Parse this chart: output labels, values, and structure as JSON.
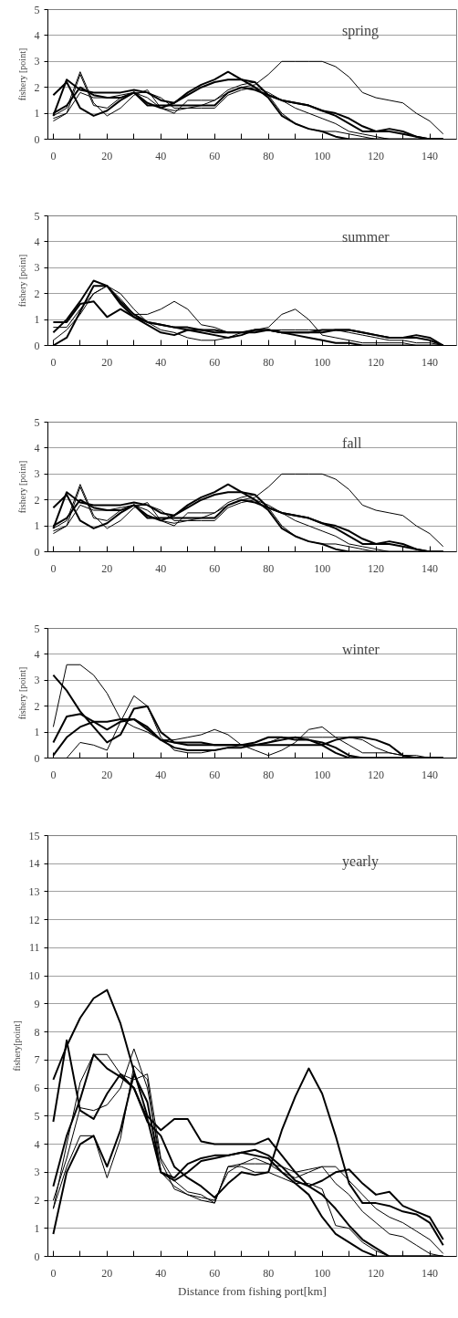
{
  "chart_data": [
    {
      "type": "line",
      "title": "spring",
      "ylabel": "fishery [point]",
      "grid": "y",
      "line_style": "solid",
      "marker": "none",
      "xlim": [
        -2,
        150
      ],
      "ylim": [
        0,
        5
      ],
      "yticks": [
        0,
        1,
        2,
        3,
        4,
        5
      ],
      "xticks": [
        0,
        {
          "value": 10,
          "label": null
        },
        20,
        {
          "value": 30,
          "label": null
        },
        40,
        {
          "value": 50,
          "label": null
        },
        60,
        {
          "value": 70,
          "label": null
        },
        80,
        {
          "value": 90,
          "label": null
        },
        100,
        {
          "value": 110,
          "label": null
        },
        120,
        {
          "value": 130,
          "label": null
        },
        140
      ],
      "x": [
        0,
        5,
        10,
        15,
        20,
        25,
        30,
        35,
        40,
        45,
        50,
        55,
        60,
        65,
        70,
        75,
        80,
        85,
        90,
        95,
        100,
        105,
        110,
        115,
        120,
        125,
        130,
        135,
        140,
        145
      ],
      "series": [
        {
          "color": "#000000",
          "values": [
            1.7,
            2.2,
            1.2,
            0.9,
            1.1,
            1.5,
            1.8,
            1.4,
            1.2,
            1.4,
            1.8,
            2.1,
            2.3,
            2.6,
            2.3,
            2.0,
            1.6,
            0.9,
            0.6,
            0.4,
            0.3,
            0.1,
            0,
            0,
            0,
            0,
            0,
            0,
            0,
            0
          ]
        },
        {
          "color": "#000000",
          "values": [
            0.7,
            1.0,
            2.5,
            1.3,
            1.2,
            1.6,
            1.8,
            1.6,
            1.2,
            1.1,
            1.2,
            1.3,
            1.5,
            1.8,
            2.0,
            2.1,
            2.5,
            3.0,
            3.0,
            3.0,
            3.0,
            2.8,
            2.4,
            1.8,
            1.6,
            1.5,
            1.4,
            1.0,
            0.7,
            0.2
          ]
        },
        {
          "color": "#000000",
          "values": [
            0.9,
            2.3,
            1.9,
            1.8,
            1.8,
            1.8,
            1.9,
            1.8,
            1.5,
            1.4,
            1.7,
            2.0,
            2.2,
            2.3,
            2.3,
            2.2,
            1.7,
            1.5,
            1.4,
            1.3,
            1.1,
            1.0,
            0.8,
            0.5,
            0.3,
            0.4,
            0.3,
            0.1,
            0,
            0
          ]
        },
        {
          "color": "#000000",
          "values": [
            0.8,
            1.0,
            1.8,
            1.6,
            1.6,
            1.7,
            1.8,
            1.8,
            1.6,
            1.2,
            1.2,
            1.2,
            1.2,
            1.7,
            1.9,
            2.0,
            1.8,
            1.5,
            1.2,
            1.0,
            0.8,
            0.6,
            0.3,
            0.2,
            0.1,
            0,
            0,
            0,
            0,
            0
          ]
        },
        {
          "color": "#000000",
          "values": [
            1.0,
            1.3,
            2.0,
            1.7,
            1.6,
            1.6,
            1.8,
            1.3,
            1.3,
            1.3,
            1.3,
            1.3,
            1.3,
            1.8,
            2.0,
            1.9,
            1.7,
            1.5,
            1.4,
            1.3,
            1.1,
            0.9,
            0.6,
            0.3,
            0.3,
            0.3,
            0.2,
            0.1,
            0,
            0
          ]
        },
        {
          "color": "#000000",
          "values": [
            0.9,
            1.2,
            2.6,
            1.4,
            0.9,
            1.2,
            1.7,
            1.9,
            1.2,
            1.0,
            1.5,
            1.5,
            1.5,
            1.9,
            2.1,
            2.2,
            1.7,
            1.0,
            0.6,
            0.4,
            0.3,
            0.3,
            0.2,
            0.1,
            0,
            0,
            0,
            0,
            0,
            0
          ]
        }
      ]
    },
    {
      "type": "line",
      "title": "summer",
      "ylabel": "fishery [point]",
      "grid": "y",
      "line_style": "solid",
      "marker": "none",
      "xlim": [
        -2,
        150
      ],
      "ylim": [
        0,
        5
      ],
      "yticks": [
        0,
        1,
        2,
        3,
        4,
        5
      ],
      "xticks": [
        0,
        {
          "value": 10,
          "label": null
        },
        20,
        {
          "value": 30,
          "label": null
        },
        40,
        {
          "value": 50,
          "label": null
        },
        60,
        {
          "value": 70,
          "label": null
        },
        80,
        {
          "value": 90,
          "label": null
        },
        100,
        {
          "value": 110,
          "label": null
        },
        120,
        {
          "value": 130,
          "label": null
        },
        140
      ],
      "x": [
        0,
        5,
        10,
        15,
        20,
        25,
        30,
        35,
        40,
        45,
        50,
        55,
        60,
        65,
        70,
        75,
        80,
        85,
        90,
        95,
        100,
        105,
        110,
        115,
        120,
        125,
        130,
        135,
        140,
        145
      ],
      "series": [
        {
          "color": "#000000",
          "values": [
            0.5,
            1.0,
            1.7,
            2.5,
            2.3,
            1.6,
            1.1,
            0.8,
            0.5,
            0.4,
            0.6,
            0.6,
            0.5,
            0.5,
            0.5,
            0.5,
            0.6,
            0.5,
            0.5,
            0.5,
            0.5,
            0.6,
            0.6,
            0.5,
            0.4,
            0.3,
            0.3,
            0.4,
            0.3,
            0
          ]
        },
        {
          "color": "#000000",
          "values": [
            0.7,
            0.7,
            1.4,
            2.0,
            2.3,
            1.8,
            1.2,
            1.2,
            1.4,
            1.7,
            1.4,
            0.8,
            0.7,
            0.5,
            0.5,
            0.6,
            0.7,
            1.2,
            1.4,
            1.0,
            0.4,
            0.3,
            0.2,
            0.1,
            0.1,
            0.1,
            0.1,
            0,
            0,
            0
          ]
        },
        {
          "color": "#000000",
          "values": [
            0.9,
            0.9,
            1.6,
            1.7,
            1.1,
            1.4,
            1.1,
            0.9,
            0.8,
            0.7,
            0.7,
            0.6,
            0.6,
            0.5,
            0.5,
            0.6,
            0.6,
            0.5,
            0.4,
            0.3,
            0.2,
            0.1,
            0.1,
            0,
            0,
            0,
            0,
            0,
            0,
            0
          ]
        },
        {
          "color": "#000000",
          "values": [
            0.2,
            0.6,
            1.2,
            2.0,
            2.3,
            2.0,
            1.4,
            0.9,
            0.6,
            0.5,
            0.3,
            0.2,
            0.2,
            0.3,
            0.5,
            0.6,
            0.6,
            0.6,
            0.6,
            0.6,
            0.6,
            0.6,
            0.5,
            0.4,
            0.3,
            0.2,
            0.2,
            0.1,
            0.1,
            0
          ]
        },
        {
          "color": "#000000",
          "values": [
            0,
            0.3,
            1.3,
            2.3,
            2.3,
            1.7,
            1.2,
            0.9,
            0.8,
            0.7,
            0.6,
            0.5,
            0.4,
            0.3,
            0.4,
            0.6,
            0.6,
            0.5,
            0.5,
            0.5,
            0.6,
            0.6,
            0.6,
            0.5,
            0.4,
            0.3,
            0.3,
            0.3,
            0.2,
            0
          ]
        }
      ]
    },
    {
      "type": "line",
      "title": "fall",
      "ylabel": "fishery [point]",
      "grid": "y",
      "line_style": "solid",
      "marker": "none",
      "xlim": [
        -2,
        150
      ],
      "ylim": [
        0,
        5
      ],
      "yticks": [
        0,
        1,
        2,
        3,
        4,
        5
      ],
      "xticks": [
        0,
        {
          "value": 10,
          "label": null
        },
        20,
        {
          "value": 30,
          "label": null
        },
        40,
        {
          "value": 50,
          "label": null
        },
        60,
        {
          "value": 70,
          "label": null
        },
        80,
        {
          "value": 90,
          "label": null
        },
        100,
        {
          "value": 110,
          "label": null
        },
        120,
        {
          "value": 130,
          "label": null
        },
        140
      ],
      "x": [
        0,
        5,
        10,
        15,
        20,
        25,
        30,
        35,
        40,
        45,
        50,
        55,
        60,
        65,
        70,
        75,
        80,
        85,
        90,
        95,
        100,
        105,
        110,
        115,
        120,
        125,
        130,
        135,
        140,
        145
      ],
      "series": [
        {
          "color": "#000000",
          "values": [
            1.7,
            2.2,
            1.2,
            0.9,
            1.1,
            1.5,
            1.8,
            1.4,
            1.2,
            1.4,
            1.8,
            2.1,
            2.3,
            2.6,
            2.3,
            2.0,
            1.6,
            0.9,
            0.6,
            0.4,
            0.3,
            0.1,
            0,
            0,
            0,
            0,
            0,
            0,
            0,
            0
          ]
        },
        {
          "color": "#000000",
          "values": [
            0.7,
            1.0,
            2.5,
            1.3,
            1.2,
            1.6,
            1.8,
            1.6,
            1.2,
            1.1,
            1.2,
            1.3,
            1.5,
            1.8,
            2.0,
            2.1,
            2.5,
            3.0,
            3.0,
            3.0,
            3.0,
            2.8,
            2.4,
            1.8,
            1.6,
            1.5,
            1.4,
            1.0,
            0.7,
            0.2
          ]
        },
        {
          "color": "#000000",
          "values": [
            0.9,
            2.3,
            1.9,
            1.8,
            1.8,
            1.8,
            1.9,
            1.8,
            1.5,
            1.4,
            1.7,
            2.0,
            2.2,
            2.3,
            2.3,
            2.2,
            1.7,
            1.5,
            1.4,
            1.3,
            1.1,
            1.0,
            0.8,
            0.5,
            0.3,
            0.4,
            0.3,
            0.1,
            0,
            0
          ]
        },
        {
          "color": "#000000",
          "values": [
            0.8,
            1.0,
            1.8,
            1.6,
            1.6,
            1.7,
            1.8,
            1.8,
            1.6,
            1.2,
            1.2,
            1.2,
            1.2,
            1.7,
            1.9,
            2.0,
            1.8,
            1.5,
            1.2,
            1.0,
            0.8,
            0.6,
            0.3,
            0.2,
            0.1,
            0,
            0,
            0,
            0,
            0
          ]
        },
        {
          "color": "#000000",
          "values": [
            1.0,
            1.3,
            2.0,
            1.7,
            1.6,
            1.6,
            1.8,
            1.3,
            1.3,
            1.3,
            1.3,
            1.3,
            1.3,
            1.8,
            2.0,
            1.9,
            1.7,
            1.5,
            1.4,
            1.3,
            1.1,
            0.9,
            0.6,
            0.3,
            0.3,
            0.3,
            0.2,
            0.1,
            0,
            0
          ]
        },
        {
          "color": "#000000",
          "values": [
            0.9,
            1.2,
            2.6,
            1.4,
            0.9,
            1.2,
            1.7,
            1.9,
            1.2,
            1.0,
            1.5,
            1.5,
            1.5,
            1.9,
            2.1,
            2.2,
            1.7,
            1.0,
            0.6,
            0.4,
            0.3,
            0.3,
            0.2,
            0.1,
            0,
            0,
            0,
            0,
            0,
            0
          ]
        }
      ]
    },
    {
      "type": "line",
      "title": "winter",
      "ylabel": "fishery [point]",
      "grid": "y",
      "line_style": "solid",
      "marker": "none",
      "xlim": [
        -2,
        150
      ],
      "ylim": [
        0,
        5
      ],
      "yticks": [
        0,
        1,
        2,
        3,
        4,
        5
      ],
      "xticks": [
        0,
        {
          "value": 10,
          "label": null
        },
        20,
        {
          "value": 30,
          "label": null
        },
        40,
        {
          "value": 50,
          "label": null
        },
        60,
        {
          "value": 70,
          "label": null
        },
        80,
        {
          "value": 90,
          "label": null
        },
        100,
        {
          "value": 110,
          "label": null
        },
        120,
        {
          "value": 130,
          "label": null
        },
        140
      ],
      "x": [
        0,
        5,
        10,
        15,
        20,
        25,
        30,
        35,
        40,
        45,
        50,
        55,
        60,
        65,
        70,
        75,
        80,
        85,
        90,
        95,
        100,
        105,
        110,
        115,
        120,
        125,
        130,
        135,
        140,
        145
      ],
      "series": [
        {
          "color": "#000000",
          "values": [
            3.2,
            2.6,
            1.8,
            1.2,
            0.6,
            0.9,
            1.9,
            2.0,
            1.0,
            0.6,
            0.5,
            0.5,
            0.5,
            0.5,
            0.5,
            0.5,
            0.5,
            0.5,
            0.5,
            0.5,
            0.5,
            0.7,
            0.8,
            0.8,
            0.7,
            0.5,
            0.1,
            0,
            0,
            0
          ]
        },
        {
          "color": "#000000",
          "values": [
            1.2,
            3.6,
            3.6,
            3.2,
            2.5,
            1.5,
            1.2,
            1.0,
            0.7,
            0.7,
            0.8,
            0.9,
            1.1,
            0.9,
            0.5,
            0.3,
            0.1,
            0.3,
            0.6,
            1.1,
            1.2,
            0.8,
            0.5,
            0.2,
            0.2,
            0.2,
            0.1,
            0.1,
            0,
            0
          ]
        },
        {
          "color": "#000000",
          "values": [
            0.6,
            1.6,
            1.7,
            1.4,
            1.1,
            1.4,
            1.5,
            1.2,
            0.7,
            0.6,
            0.6,
            0.6,
            0.5,
            0.5,
            0.5,
            0.6,
            0.8,
            0.8,
            0.7,
            0.7,
            0.5,
            0.2,
            0,
            0,
            0,
            0,
            0,
            0,
            0,
            0
          ]
        },
        {
          "color": "#000000",
          "values": [
            0,
            0,
            0.6,
            0.5,
            0.3,
            1.4,
            2.4,
            2.0,
            0.8,
            0.3,
            0.2,
            0.2,
            0.3,
            0.4,
            0.5,
            0.5,
            0.6,
            0.8,
            0.8,
            0.8,
            0.8,
            0.8,
            0.8,
            0.7,
            0.4,
            0.2,
            0.1,
            0,
            0,
            0
          ]
        },
        {
          "color": "#000000",
          "values": [
            0.1,
            0.8,
            1.2,
            1.4,
            1.4,
            1.5,
            1.5,
            1.1,
            0.7,
            0.4,
            0.3,
            0.3,
            0.3,
            0.4,
            0.4,
            0.5,
            0.6,
            0.7,
            0.8,
            0.7,
            0.6,
            0.4,
            0.1,
            0,
            0,
            0,
            0,
            0,
            0,
            0
          ]
        }
      ]
    },
    {
      "type": "line",
      "title": "yearly",
      "ylabel": "fishery[point]",
      "xlabel": "Distance from fishing port[km]",
      "grid": "y",
      "line_style": "solid",
      "marker": "none",
      "xlim": [
        -2,
        150
      ],
      "ylim": [
        0,
        15
      ],
      "yticks": [
        0,
        1,
        2,
        3,
        4,
        5,
        6,
        7,
        8,
        9,
        10,
        11,
        12,
        13,
        14,
        15
      ],
      "xticks": [
        0,
        {
          "value": 10,
          "label": null
        },
        20,
        {
          "value": 30,
          "label": null
        },
        40,
        {
          "value": 50,
          "label": null
        },
        60,
        {
          "value": 70,
          "label": null
        },
        80,
        {
          "value": 90,
          "label": null
        },
        100,
        {
          "value": 110,
          "label": null
        },
        120,
        {
          "value": 130,
          "label": null
        },
        140
      ],
      "x": [
        0,
        5,
        10,
        15,
        20,
        25,
        30,
        35,
        40,
        45,
        50,
        55,
        60,
        65,
        70,
        75,
        80,
        85,
        90,
        95,
        100,
        105,
        110,
        115,
        120,
        125,
        130,
        135,
        140,
        145
      ],
      "series": [
        {
          "color": "#000000",
          "values": [
            6.3,
            7.5,
            8.5,
            9.2,
            9.5,
            8.3,
            6.6,
            5.0,
            4.5,
            4.9,
            4.9,
            4.1,
            4.0,
            4.0,
            4.0,
            4.0,
            4.2,
            3.6,
            3.0,
            2.5,
            2.2,
            1.7,
            1.1,
            0.6,
            0.3,
            0,
            0,
            0,
            0,
            0
          ]
        },
        {
          "color": "#000000",
          "values": [
            1.7,
            4.0,
            6.2,
            7.2,
            7.2,
            6.5,
            6.3,
            6.5,
            3.5,
            2.7,
            2.3,
            2.2,
            1.9,
            3.2,
            3.3,
            3.3,
            3.3,
            3.2,
            3.0,
            3.1,
            3.2,
            2.6,
            2.2,
            1.6,
            1.2,
            0.8,
            0.7,
            0.4,
            0.1,
            0
          ]
        },
        {
          "color": "#000000",
          "values": [
            4.8,
            7.7,
            5.2,
            4.9,
            5.8,
            6.5,
            6.0,
            4.8,
            4.3,
            3.2,
            2.8,
            2.5,
            2.1,
            2.6,
            3.0,
            2.9,
            3.0,
            4.5,
            5.7,
            6.7,
            5.8,
            4.3,
            2.6,
            1.9,
            1.9,
            1.8,
            1.6,
            1.5,
            1.2,
            0.4
          ]
        },
        {
          "color": "#000000",
          "values": [
            2.0,
            3.5,
            5.3,
            5.2,
            5.4,
            6.0,
            7.4,
            6.0,
            3.4,
            2.4,
            2.2,
            2.1,
            2.0,
            3.0,
            3.3,
            3.5,
            3.3,
            3.0,
            2.8,
            3.0,
            3.2,
            3.2,
            2.7,
            2.2,
            1.7,
            1.4,
            1.2,
            0.9,
            0.6,
            0.1
          ]
        },
        {
          "color": "#000000",
          "values": [
            0.8,
            3.0,
            4.0,
            4.3,
            3.2,
            4.5,
            6.5,
            5.5,
            3.0,
            2.7,
            3.0,
            3.4,
            3.5,
            3.6,
            3.7,
            3.8,
            3.6,
            3.2,
            2.7,
            2.5,
            2.7,
            3.0,
            3.1,
            2.6,
            2.2,
            2.3,
            1.8,
            1.6,
            1.4,
            0.6
          ]
        },
        {
          "color": "#000000",
          "values": [
            1.7,
            3.2,
            4.3,
            4.3,
            2.8,
            4.2,
            6.8,
            6.3,
            3.0,
            2.5,
            2.2,
            2.0,
            1.9,
            3.2,
            3.2,
            3.0,
            3.0,
            2.8,
            2.6,
            2.6,
            2.4,
            1.1,
            1.0,
            0.5,
            0.2,
            0,
            0,
            0,
            0,
            0
          ]
        },
        {
          "color": "#000000",
          "values": [
            2.5,
            4.3,
            5.6,
            7.2,
            6.7,
            6.4,
            6.0,
            4.9,
            3.0,
            2.8,
            3.3,
            3.5,
            3.6,
            3.6,
            3.7,
            3.6,
            3.5,
            3.0,
            2.6,
            2.2,
            1.4,
            0.8,
            0.5,
            0.2,
            0,
            0,
            0,
            0,
            0,
            0
          ]
        }
      ]
    }
  ]
}
